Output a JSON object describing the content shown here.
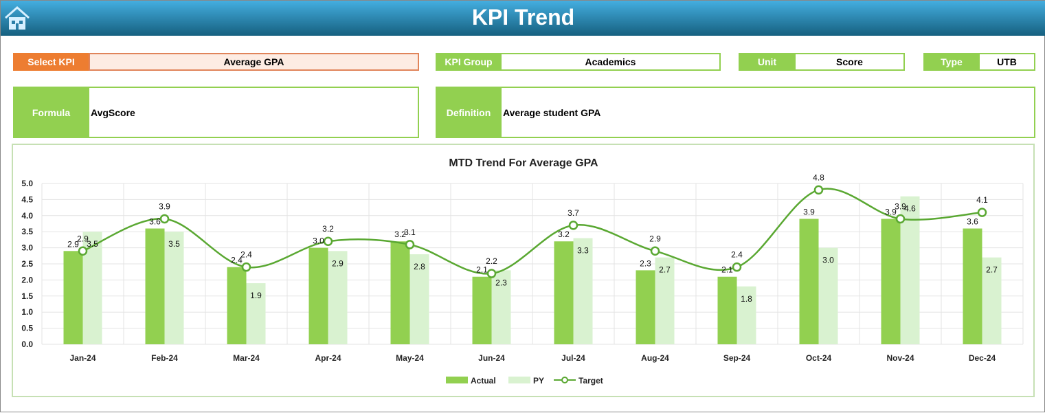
{
  "header": {
    "title": "KPI Trend",
    "home_icon": "home-icon"
  },
  "fields": {
    "select_kpi": {
      "label": "Select KPI",
      "value": "Average GPA"
    },
    "kpi_group": {
      "label": "KPI Group",
      "value": "Academics"
    },
    "unit": {
      "label": "Unit",
      "value": "Score"
    },
    "type": {
      "label": "Type",
      "value": "UTB"
    },
    "formula": {
      "label": "Formula",
      "value": "AvgScore"
    },
    "definition": {
      "label": "Definition",
      "value": "Average student GPA"
    }
  },
  "colors": {
    "actual": "#92d050",
    "py": "#d9f2d0",
    "target": "#5aa832",
    "orange": "#ed7d31"
  },
  "chart_data": {
    "type": "bar",
    "title": "MTD Trend For Average GPA",
    "categories": [
      "Jan-24",
      "Feb-24",
      "Mar-24",
      "Apr-24",
      "May-24",
      "Jun-24",
      "Jul-24",
      "Aug-24",
      "Sep-24",
      "Oct-24",
      "Nov-24",
      "Dec-24"
    ],
    "ylim": [
      0,
      5
    ],
    "yticks": [
      "0.0",
      "0.5",
      "1.0",
      "1.5",
      "2.0",
      "2.5",
      "3.0",
      "3.5",
      "4.0",
      "4.5",
      "5.0"
    ],
    "grid": true,
    "legend": "bottom",
    "series": [
      {
        "name": "Actual",
        "type": "bar",
        "values": [
          2.9,
          3.6,
          2.4,
          3.0,
          3.2,
          2.1,
          3.2,
          2.3,
          2.1,
          3.9,
          3.9,
          3.6
        ]
      },
      {
        "name": "PY",
        "type": "bar",
        "values": [
          3.5,
          3.5,
          1.9,
          2.9,
          2.8,
          2.3,
          3.3,
          2.7,
          1.8,
          3.0,
          4.6,
          2.7
        ]
      },
      {
        "name": "Target",
        "type": "line",
        "values": [
          2.9,
          3.9,
          2.4,
          3.2,
          3.1,
          2.2,
          3.7,
          2.9,
          2.4,
          4.8,
          3.9,
          4.1
        ]
      }
    ]
  }
}
